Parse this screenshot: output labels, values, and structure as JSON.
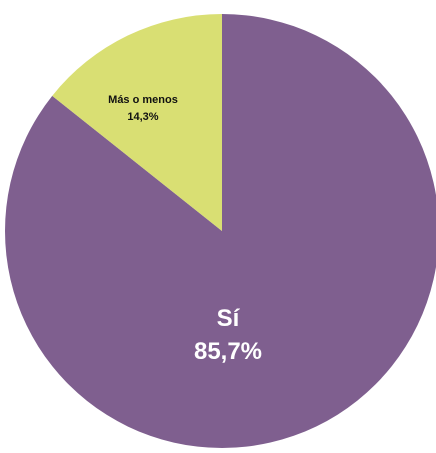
{
  "chart_data": {
    "type": "pie",
    "title": "",
    "slices": [
      {
        "label": "Sí",
        "value": 85.7,
        "value_label": "85,7%",
        "color": "#7f5f8f",
        "label_color": "#ffffff"
      },
      {
        "label": "Más o menos",
        "value": 14.3,
        "value_label": "14,3%",
        "color": "#d9df73",
        "label_color": "#111111"
      }
    ],
    "start_angle_deg": 0,
    "direction": "clockwise"
  }
}
